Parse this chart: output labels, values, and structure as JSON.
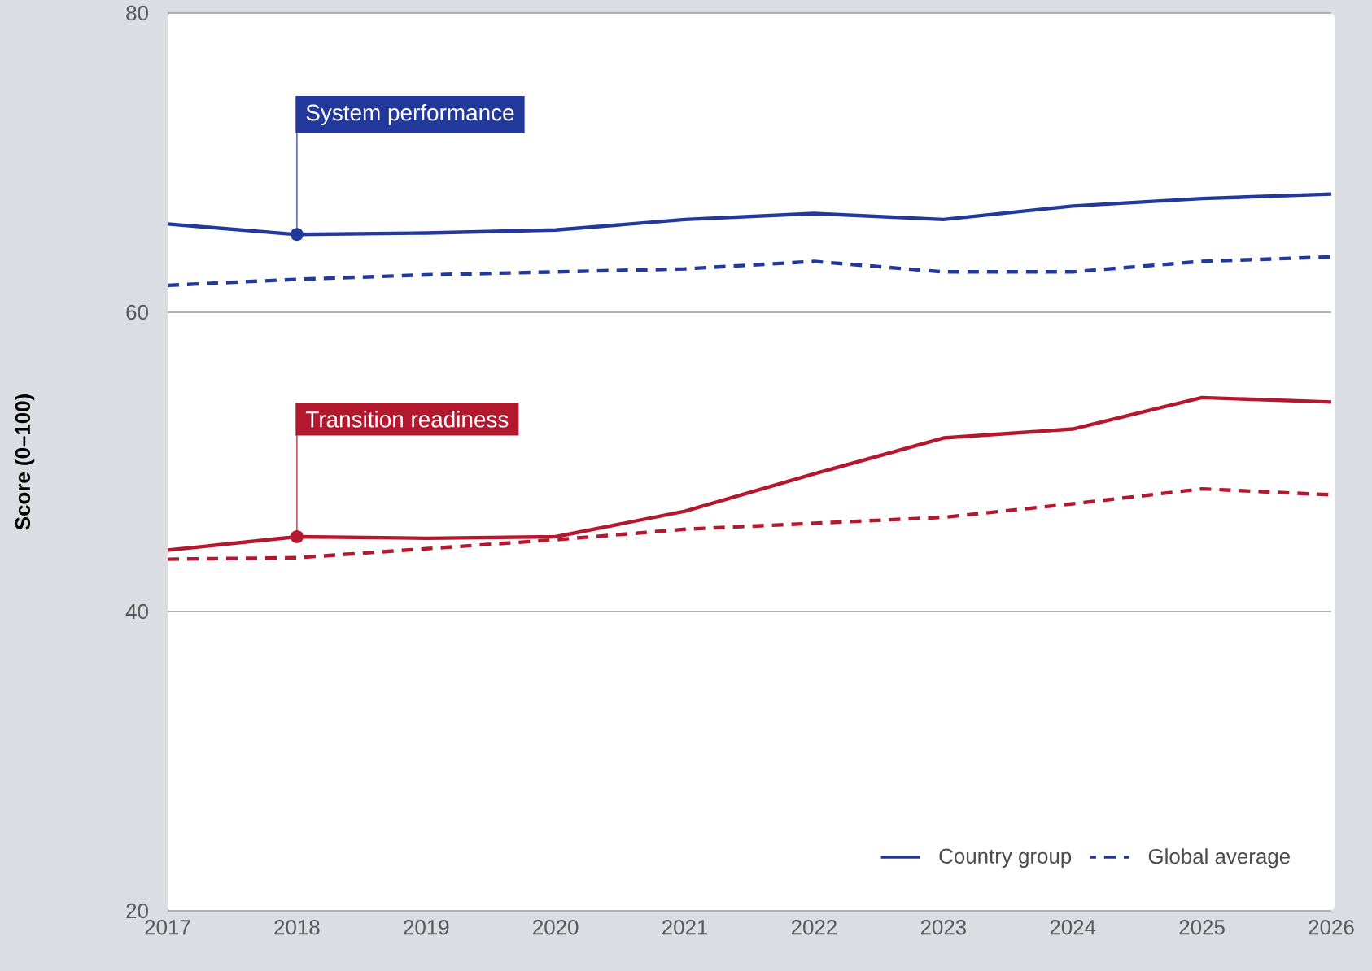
{
  "chart_data": {
    "type": "line",
    "ylabel": "Score (0–100)",
    "x": [
      2017,
      2018,
      2019,
      2020,
      2021,
      2022,
      2023,
      2024,
      2025,
      2026
    ],
    "xlim": [
      2017,
      2026
    ],
    "xticks": [
      2017,
      2018,
      2019,
      2020,
      2021,
      2022,
      2023,
      2024,
      2025,
      2026
    ],
    "ylim": [
      20,
      80
    ],
    "yticks": [
      20,
      40,
      60,
      80
    ],
    "grid": "y",
    "legend": "bottom right",
    "series": [
      {
        "name": "Country group",
        "color": "#22399b",
        "line_style": "solid",
        "values": [
          65.9,
          65.2,
          65.3,
          65.5,
          66.2,
          66.6,
          66.2,
          67.1,
          67.6,
          67.9
        ]
      },
      {
        "name": "Global average",
        "color": "#22399b",
        "line_style": "dashed",
        "values": [
          61.8,
          62.2,
          62.5,
          62.7,
          62.9,
          63.4,
          62.7,
          62.7,
          63.4,
          63.7
        ]
      },
      {
        "color": "#b3182f",
        "line_style": "solid",
        "values": [
          44.1,
          45.0,
          44.9,
          45.0,
          46.7,
          49.2,
          51.6,
          52.2,
          54.3,
          54.0
        ]
      },
      {
        "color": "#b3182f",
        "line_style": "dashed",
        "values": [
          43.5,
          43.6,
          44.2,
          44.8,
          45.5,
          45.9,
          46.3,
          47.2,
          48.2,
          47.8
        ]
      }
    ],
    "annotations": [
      {
        "text": "System performance",
        "x": 2018,
        "y": 65.2
      },
      {
        "text": "Transition readiness",
        "x": 2018,
        "y": 45.0
      }
    ]
  }
}
